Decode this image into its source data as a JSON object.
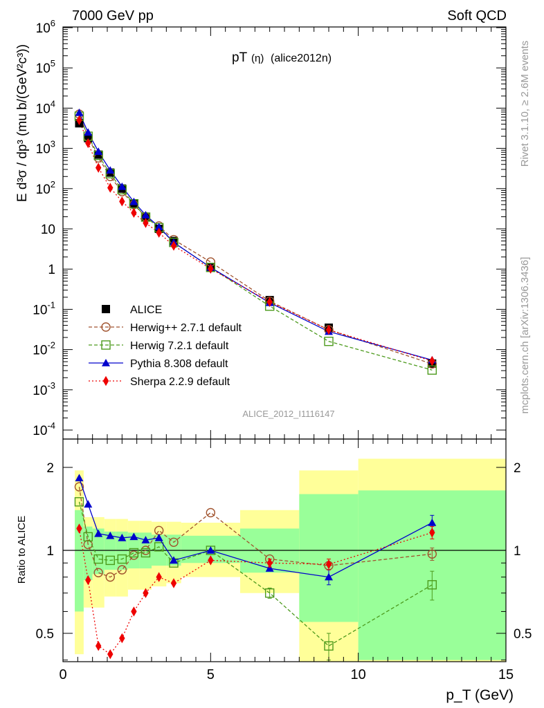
{
  "header": {
    "left": "7000 GeV pp",
    "right": "Soft QCD",
    "title_main": "pT",
    "title_paren": "(η)",
    "title_tag": "(alice2012n)",
    "analysis_id": "ALICE_2012_I1116147",
    "rivet_label": "Rivet 3.1.10, ≥ 2.6M events",
    "mcplots_label": "mcplots.cern.ch [arXiv:1306.3436]"
  },
  "axes": {
    "ylabel_top": "E d³σ / dp³ (mu b/(GeV²c³))",
    "ylabel_bottom": "Ratio to ALICE",
    "xlabel": "p_T (GeV)"
  },
  "legend": [
    {
      "key": "alice",
      "label": "ALICE"
    },
    {
      "key": "herwigpp",
      "label": "Herwig++ 2.7.1 default"
    },
    {
      "key": "herwig7",
      "label": "Herwig 7.2.1 default"
    },
    {
      "key": "pythia",
      "label": "Pythia 8.308 default"
    },
    {
      "key": "sherpa",
      "label": "Sherpa 2.2.9 default"
    }
  ],
  "colors": {
    "alice": "#000000",
    "herwigpp": "#a0522d",
    "herwig7": "#4c9a1c",
    "pythia": "#0000cc",
    "sherpa": "#ee0000",
    "band_inner": "#99ff99",
    "band_outer": "#ffff99"
  },
  "chart_data": [
    {
      "type": "scatter",
      "panel": "main",
      "yscale": "log",
      "xlim": [
        0,
        15
      ],
      "ylim": [
        7e-05,
        1000000
      ],
      "x_ticks": [
        0,
        5,
        10,
        15
      ],
      "y_tick_labels": [
        "10^-4",
        "10^-3",
        "10^-2",
        "10^-1",
        "1",
        "10",
        "10^2",
        "10^3",
        "10^4",
        "10^5",
        "10^6"
      ],
      "x": [
        0.55,
        0.85,
        1.2,
        1.6,
        2.0,
        2.4,
        2.8,
        3.25,
        3.75,
        5.0,
        7.0,
        9.0,
        12.5
      ],
      "series": [
        {
          "name": "ALICE",
          "values": [
            4200,
            1800,
            700,
            250,
            100,
            42,
            20,
            10,
            5.0,
            1.1,
            0.17,
            0.035,
            0.0045
          ]
        },
        {
          "name": "Herwig++ 2.7.1 default",
          "values": [
            7100,
            1900,
            580,
            200,
            84,
            40,
            20,
            11.8,
            5.4,
            1.5,
            0.16,
            0.031,
            0.0044
          ]
        },
        {
          "name": "Herwig 7.2.1 default",
          "values": [
            6300,
            2000,
            670,
            235,
            94,
            42,
            19.6,
            10.7,
            4.6,
            1.1,
            0.12,
            0.016,
            0.0031
          ]
        },
        {
          "name": "Pythia 8.308 default",
          "values": [
            7700,
            2500,
            830,
            285,
            112,
            47,
            22,
            11.2,
            4.6,
            1.1,
            0.146,
            0.028,
            0.0055
          ]
        },
        {
          "name": "Sherpa 2.2.9 default",
          "values": [
            5000,
            1350,
            330,
            105,
            48,
            25,
            14,
            8.0,
            3.8,
            1.02,
            0.153,
            0.031,
            0.0052
          ]
        }
      ]
    },
    {
      "type": "line",
      "panel": "ratio",
      "xlim": [
        0,
        15
      ],
      "ylim": [
        0.35,
        2.3
      ],
      "y_ticks": [
        0.5,
        1,
        2
      ],
      "x_ticks": [
        0,
        5,
        10,
        15
      ],
      "x": [
        0.55,
        0.85,
        1.2,
        1.6,
        2.0,
        2.4,
        2.8,
        3.25,
        3.75,
        5.0,
        7.0,
        9.0,
        12.5
      ],
      "series": [
        {
          "name": "Herwig++ 2.7.1 default",
          "values": [
            1.7,
            1.05,
            0.83,
            0.8,
            0.85,
            0.96,
            1.0,
            1.18,
            1.07,
            1.37,
            0.93,
            0.88,
            0.97
          ]
        },
        {
          "name": "Herwig 7.2.1 default",
          "values": [
            1.5,
            1.12,
            0.93,
            0.92,
            0.93,
            0.98,
            0.98,
            1.03,
            0.9,
            1.0,
            0.7,
            0.45,
            0.75
          ]
        },
        {
          "name": "Pythia 8.308 default",
          "values": [
            1.83,
            1.47,
            1.15,
            1.13,
            1.11,
            1.12,
            1.09,
            1.11,
            0.92,
            1.0,
            0.86,
            0.8,
            1.26
          ]
        },
        {
          "name": "Sherpa 2.2.9 default",
          "values": [
            1.2,
            0.78,
            0.45,
            0.42,
            0.48,
            0.6,
            0.7,
            0.8,
            0.76,
            0.92,
            0.9,
            0.89,
            1.16
          ]
        }
      ],
      "error_bars": {
        "Herwig 7.2.1 default": [
          null,
          null,
          null,
          null,
          null,
          null,
          null,
          null,
          null,
          null,
          0.03,
          0.05,
          0.09
        ],
        "Herwig++ 2.7.1 default": [
          null,
          null,
          null,
          null,
          null,
          null,
          null,
          null,
          null,
          null,
          null,
          0.03,
          0.05
        ],
        "Pythia 8.308 default": [
          null,
          null,
          null,
          null,
          null,
          null,
          null,
          null,
          null,
          null,
          null,
          0.05,
          0.08
        ],
        "Sherpa 2.2.9 default": [
          null,
          null,
          null,
          null,
          null,
          null,
          null,
          null,
          null,
          null,
          0.03,
          0.04,
          0.06
        ]
      },
      "bands": [
        {
          "x0": 0.4,
          "x1": 0.7,
          "outer": [
            0.42,
            1.95
          ],
          "inner": [
            0.6,
            1.4
          ]
        },
        {
          "x0": 0.7,
          "x1": 1.0,
          "outer": [
            0.62,
            1.32
          ],
          "inner": [
            0.78,
            1.22
          ]
        },
        {
          "x0": 1.0,
          "x1": 1.4,
          "outer": [
            0.62,
            1.32
          ],
          "inner": [
            0.82,
            1.2
          ]
        },
        {
          "x0": 1.4,
          "x1": 1.8,
          "outer": [
            0.68,
            1.3
          ],
          "inner": [
            0.85,
            1.17
          ]
        },
        {
          "x0": 1.8,
          "x1": 2.2,
          "outer": [
            0.68,
            1.3
          ],
          "inner": [
            0.85,
            1.17
          ]
        },
        {
          "x0": 2.2,
          "x1": 2.6,
          "outer": [
            0.72,
            1.28
          ],
          "inner": [
            0.86,
            1.16
          ]
        },
        {
          "x0": 2.6,
          "x1": 3.0,
          "outer": [
            0.72,
            1.28
          ],
          "inner": [
            0.86,
            1.16
          ]
        },
        {
          "x0": 3.0,
          "x1": 3.5,
          "outer": [
            0.74,
            1.27
          ],
          "inner": [
            0.88,
            1.14
          ]
        },
        {
          "x0": 3.5,
          "x1": 4.0,
          "outer": [
            0.76,
            1.27
          ],
          "inner": [
            0.88,
            1.14
          ]
        },
        {
          "x0": 4.0,
          "x1": 6.0,
          "outer": [
            0.8,
            1.26
          ],
          "inner": [
            0.9,
            1.13
          ]
        },
        {
          "x0": 6.0,
          "x1": 8.0,
          "outer": [
            0.7,
            1.4
          ],
          "inner": [
            0.83,
            1.2
          ]
        },
        {
          "x0": 8.0,
          "x1": 10.0,
          "outer": [
            0.3,
            1.95
          ],
          "inner": [
            0.55,
            1.6
          ]
        },
        {
          "x0": 10.0,
          "x1": 15.0,
          "outer": [
            0.3,
            2.15
          ],
          "inner": [
            0.4,
            1.65
          ]
        }
      ]
    }
  ]
}
